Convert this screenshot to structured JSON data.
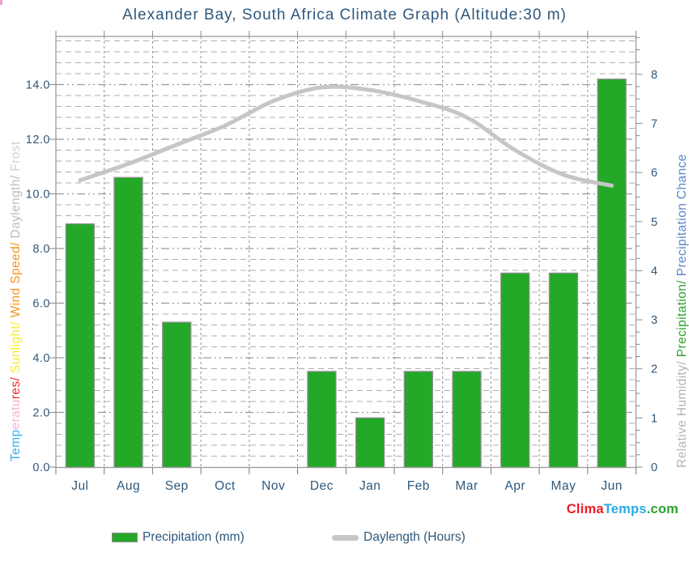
{
  "title": "Alexander Bay, South Africa Climate Graph (Altitude:30 m)",
  "chart_data": {
    "type": "bar+line",
    "categories": [
      "Jul",
      "Aug",
      "Sep",
      "Oct",
      "Nov",
      "Dec",
      "Jan",
      "Feb",
      "Mar",
      "Apr",
      "May",
      "Jun"
    ],
    "series": [
      {
        "name": "Precipitation (mm)",
        "type": "bar",
        "axis": "left",
        "color": "#23a828",
        "values": [
          8.9,
          10.6,
          5.3,
          0,
          0,
          3.5,
          1.8,
          3.5,
          3.5,
          7.1,
          7.1,
          14.2
        ]
      },
      {
        "name": "Daylength (Hours)",
        "type": "line",
        "axis": "left",
        "color": "#c6c6c6",
        "values": [
          10.5,
          11.1,
          11.8,
          12.5,
          13.4,
          13.9,
          13.8,
          13.4,
          12.8,
          11.6,
          10.7,
          10.3
        ]
      }
    ],
    "left_axis": {
      "ticks": [
        "0.0",
        "2.0",
        "4.0",
        "6.0",
        "8.0",
        "10.0",
        "12.0",
        "14.0"
      ],
      "ylim": [
        0,
        15.76
      ],
      "label_segments": [
        {
          "text": "Temp",
          "color": "#33b1e8"
        },
        {
          "text": "eratu",
          "color": "#f9b1d9"
        },
        {
          "text": "res/ ",
          "color": "#f0282d"
        },
        {
          "text": "Sunlight/ ",
          "color": "#f5ee2e"
        },
        {
          "text": "Wind Speed/ ",
          "color": "#f7941d"
        },
        {
          "text": "Daylength/ ",
          "color": "#bdbdbd"
        },
        {
          "text": "Frost",
          "color": "#d2d2d2"
        }
      ]
    },
    "right_axis": {
      "ticks": [
        "0",
        "1",
        "2",
        "3",
        "4",
        "5",
        "6",
        "7",
        "8"
      ],
      "ylim": [
        0,
        8.77
      ],
      "label_segments": [
        {
          "text": "Relative Humidity/ ",
          "color": "#b4b4b4"
        },
        {
          "text": "Precipitation/ ",
          "color": "#2ba22c"
        },
        {
          "text": "Precipitation Chance",
          "color": "#5b87c5"
        }
      ]
    },
    "grid": {
      "h_minor_step_left_units": 0.4,
      "h_major_step_left_units": 2.0,
      "v_lines": "month-boundaries",
      "style": "dashed"
    },
    "legend_position": "bottom"
  },
  "legend": {
    "precipitation_label": "Precipitation (mm)",
    "daylength_label": "Daylength (Hours)"
  },
  "logo": {
    "parts": [
      {
        "text": "Clima",
        "color": "#ed1c24"
      },
      {
        "text": "Temps",
        "color": "#29abe2"
      },
      {
        "text": ".com",
        "color": "#2ba22c"
      }
    ]
  },
  "colors": {
    "text_blue": "#2e587d",
    "bar_green": "#23a828",
    "bar_border": "#8e8e8e",
    "line_gray": "#c6c6c6",
    "grid_minor": "#adadad",
    "grid_major": "#9a9a9a",
    "grid_vertical": "#8f8f8f",
    "plot_border": "#9a9a9a"
  }
}
